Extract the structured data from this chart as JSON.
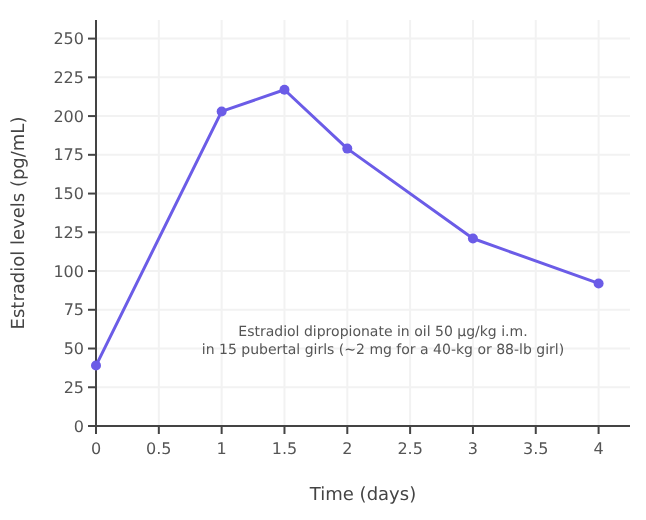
{
  "chart_data": {
    "type": "line",
    "xlabel": "Time (days)",
    "ylabel": "Estradiol levels (pg/mL)",
    "x": [
      0,
      1,
      1.5,
      2,
      3,
      4
    ],
    "series": [
      {
        "color": "#6b5ce7",
        "values": [
          39,
          203,
          217,
          179,
          121,
          92
        ]
      }
    ],
    "xlim": [
      0,
      4.25
    ],
    "xticks": [
      0,
      0.5,
      1,
      1.5,
      2,
      2.5,
      3,
      3.5,
      4
    ],
    "ylim": [
      0,
      262
    ],
    "yticks": [
      0,
      25,
      50,
      75,
      100,
      125,
      150,
      175,
      200,
      225,
      250
    ],
    "grid": true,
    "marker": "circle",
    "line_style": "solid",
    "annotations": [
      "Estradiol dipropionate in oil 50 µg/kg i.m.",
      "in 15 pubertal girls (~2 mg for a 40-kg or 88-lb girl)"
    ]
  }
}
